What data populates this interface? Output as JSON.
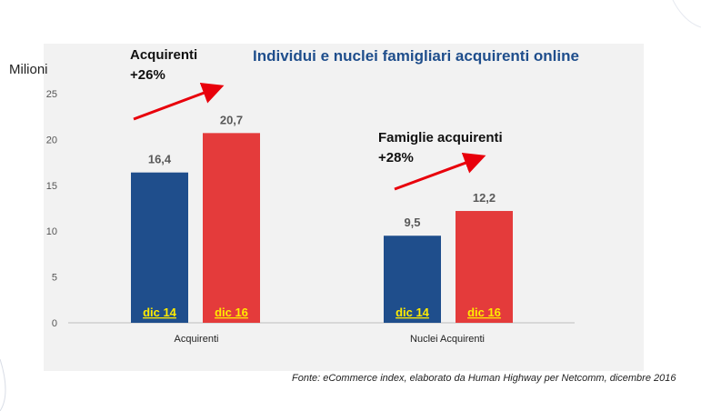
{
  "chart_data": {
    "type": "bar",
    "title": "Individui e nuclei famigliari acquirenti online",
    "ylabel": "Milioni",
    "ylim": [
      0,
      25
    ],
    "yticks": [
      "0",
      "5",
      "10",
      "15",
      "20",
      "25"
    ],
    "categories": [
      "Acquirenti",
      "Nuclei Acquirenti"
    ],
    "series": [
      {
        "name": "dic 14",
        "color": "#1f4e8c",
        "values": [
          16.4,
          9.5
        ],
        "labels": [
          "16,4",
          "9,5"
        ]
      },
      {
        "name": "dic 16",
        "color": "#e43b3b",
        "values": [
          20.7,
          12.2
        ],
        "labels": [
          "20,7",
          "12,2"
        ]
      }
    ],
    "annotations": [
      {
        "line1": "Acquirenti",
        "line2": "+26%"
      },
      {
        "line1": "Famiglie acquirenti",
        "line2": "+28%"
      }
    ],
    "legend": "inside bars (bottom)",
    "grid": false
  },
  "source": "Fonte: eCommerce index, elaborato da Human Highway per Netcomm, dicembre 2016"
}
